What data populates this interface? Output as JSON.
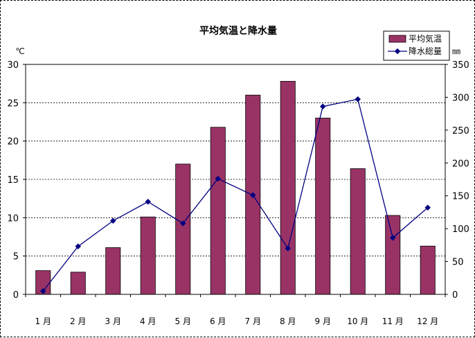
{
  "chart_data": {
    "type": "bar",
    "title": "平均気温と降水量",
    "categories": [
      "1 月",
      "2 月",
      "3 月",
      "4 月",
      "5 月",
      "6 月",
      "7 月",
      "8 月",
      "9 月",
      "10 月",
      "11 月",
      "12 月"
    ],
    "series": [
      {
        "name": "平均気温",
        "kind": "bar",
        "axis": "left",
        "color": "#993366",
        "values": [
          3.1,
          2.9,
          6.1,
          10.1,
          17.0,
          21.8,
          26.0,
          27.8,
          23.0,
          16.4,
          10.3,
          6.3
        ]
      },
      {
        "name": "降水総量",
        "kind": "line",
        "axis": "right",
        "color": "#000080",
        "values": [
          5,
          73,
          112,
          141,
          108,
          176,
          151,
          70,
          286,
          297,
          86,
          132
        ]
      }
    ],
    "y_left": {
      "unit": "℃",
      "ylim": [
        0,
        30
      ],
      "ticks": [
        "0",
        "5",
        "10",
        "15",
        "20",
        "25",
        "30"
      ]
    },
    "y_right": {
      "unit": "㎜",
      "ylim": [
        0,
        350
      ],
      "ticks": [
        "0",
        "50",
        "100",
        "150",
        "200",
        "250",
        "300",
        "350"
      ]
    },
    "grid": true,
    "legend_position": "top-right"
  }
}
